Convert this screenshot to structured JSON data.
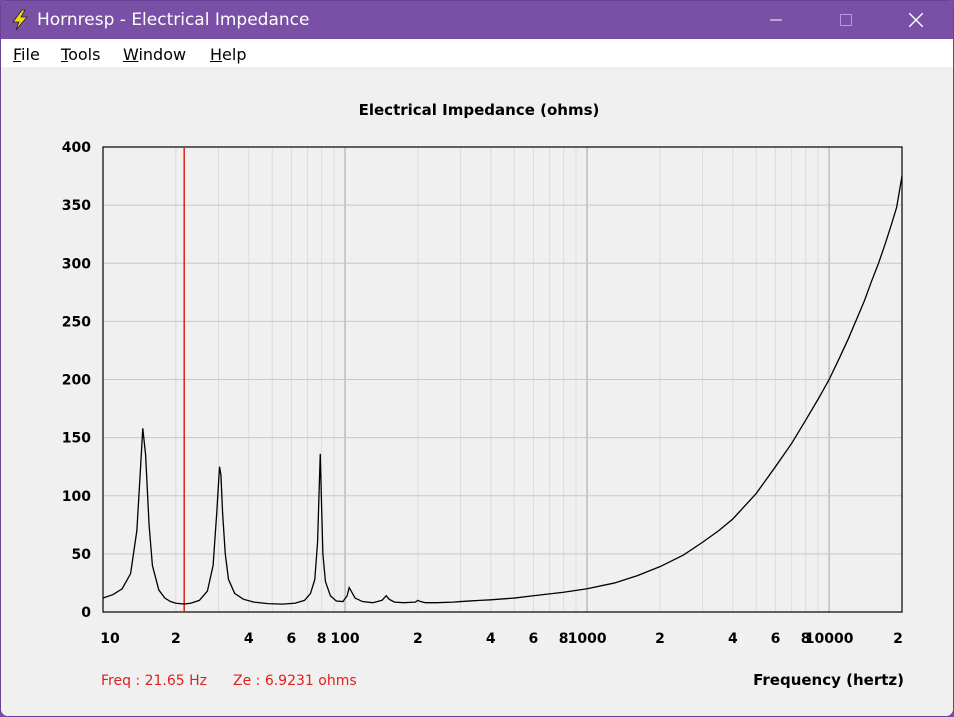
{
  "window": {
    "title": "Hornresp - Electrical Impedance",
    "controls": {
      "minimize": "—",
      "maximize": "☐",
      "close": "✕"
    }
  },
  "menu": [
    {
      "label": "File",
      "mnemonic": "F",
      "rest": "ile"
    },
    {
      "label": "Tools",
      "mnemonic": "T",
      "rest": "ools"
    },
    {
      "label": "Window",
      "mnemonic": "W",
      "rest": "indow"
    },
    {
      "label": "Help",
      "mnemonic": "H",
      "rest": "elp"
    }
  ],
  "colors": {
    "titlebar": "#7a4fa6",
    "cursor": "#e0201b",
    "readout": "#e0201b",
    "curve": "#000000",
    "grid": "#c8c8c8"
  },
  "readout": {
    "freq": "Freq : 21.65 Hz",
    "ze": "Ze : 6.9231 ohms"
  },
  "chart_data": {
    "type": "line",
    "title": "Electrical Impedance (ohms)",
    "xlabel": "Frequency (hertz)",
    "ylabel": "",
    "xscale": "log",
    "xlim": [
      10,
      20000
    ],
    "ylim": [
      0,
      400
    ],
    "y_ticks": [
      0,
      50,
      100,
      150,
      200,
      250,
      300,
      350,
      400
    ],
    "x_ticks": [
      {
        "value": 10,
        "label": "10"
      },
      {
        "value": 20,
        "label": "2"
      },
      {
        "value": 40,
        "label": "4"
      },
      {
        "value": 60,
        "label": "6"
      },
      {
        "value": 80,
        "label": "8"
      },
      {
        "value": 100,
        "label": "100"
      },
      {
        "value": 200,
        "label": "2"
      },
      {
        "value": 400,
        "label": "4"
      },
      {
        "value": 600,
        "label": "6"
      },
      {
        "value": 800,
        "label": "8"
      },
      {
        "value": 1000,
        "label": "1000"
      },
      {
        "value": 2000,
        "label": "2"
      },
      {
        "value": 4000,
        "label": "4"
      },
      {
        "value": 6000,
        "label": "6"
      },
      {
        "value": 8000,
        "label": "8"
      },
      {
        "value": 10000,
        "label": "10000"
      },
      {
        "value": 20000,
        "label": "2"
      }
    ],
    "cursor_freq": 21.65,
    "series": [
      {
        "name": "Impedance",
        "x": [
          10,
          11,
          12,
          13,
          13.8,
          14.3,
          14.6,
          15,
          15.5,
          16,
          17,
          18,
          19,
          20,
          21.65,
          23,
          25,
          27,
          28.5,
          29.5,
          30.3,
          30.7,
          31.2,
          32,
          33,
          35,
          38,
          42,
          48,
          55,
          62,
          68,
          72,
          75,
          77,
          78.3,
          79,
          79.8,
          81,
          83,
          87,
          92,
          98,
          102,
          104,
          106,
          110,
          118,
          130,
          142,
          148,
          152,
          160,
          175,
          195,
          200,
          205,
          215,
          240,
          280,
          300,
          330,
          360,
          400,
          500,
          600,
          800,
          1000,
          1300,
          1600,
          2000,
          2500,
          3000,
          3500,
          4000,
          5000,
          6000,
          7000,
          8000,
          9000,
          10000,
          11000,
          12000,
          13000,
          14000,
          15000,
          16000,
          17000,
          18000,
          19000,
          20000
        ],
        "y": [
          12,
          15,
          20,
          33,
          70,
          125,
          158,
          135,
          75,
          40,
          19,
          12,
          9,
          7.5,
          6.9,
          7.5,
          10,
          18,
          40,
          85,
          125,
          118,
          85,
          50,
          28,
          16,
          11,
          8.5,
          7.2,
          6.8,
          7.5,
          10,
          16,
          28,
          60,
          110,
          136,
          100,
          50,
          26,
          14,
          9.5,
          9,
          14,
          21,
          18,
          12,
          9,
          8,
          10,
          14,
          11,
          8.5,
          8,
          8.5,
          10,
          9,
          8,
          8,
          8.5,
          9,
          9.5,
          10,
          10.5,
          12,
          14,
          17,
          20,
          25,
          31,
          39,
          49,
          60,
          70,
          80,
          102,
          125,
          145,
          165,
          183,
          200,
          218,
          235,
          252,
          268,
          285,
          300,
          316,
          332,
          348,
          375
        ]
      }
    ]
  }
}
